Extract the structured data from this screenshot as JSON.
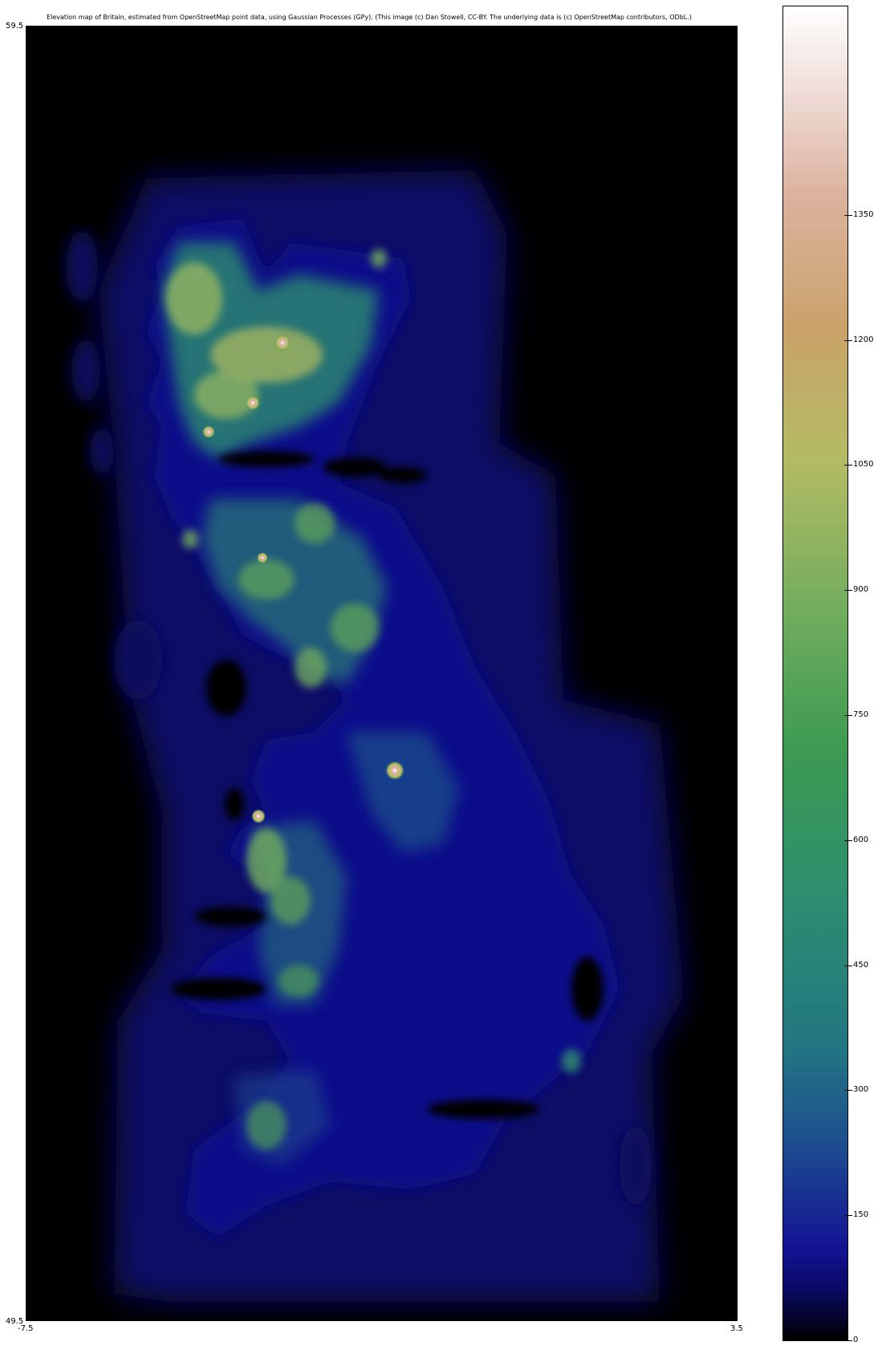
{
  "map": {
    "title": "Elevation map of Britain, estimated from OpenStreetMap point data, using Gaussian Processes (GPy). (This image (c) Dan Stowell, CC-BY. The underlying data is (c) OpenStreetMap contributors, ODbL.)",
    "axes": {
      "y_top": "59.5",
      "y_bottom": "49.5",
      "x_left": "-7.5",
      "x_right": "3.5"
    },
    "lat_range": [
      49.5,
      59.5
    ],
    "lon_range": [
      -7.5,
      3.5
    ],
    "colorbar": {
      "ticks": [
        "0",
        "150",
        "300",
        "450",
        "600",
        "750",
        "900",
        "1050",
        "1200",
        "1350"
      ],
      "range": [
        0,
        1350
      ],
      "colormap": "gist_earth",
      "colors": {
        "min": "#000000",
        "low": "#141493",
        "mid": "#3c9a52",
        "high": "#c9a36a",
        "max": "#ffffff"
      }
    },
    "colors": {
      "sea": "#000000",
      "lowland": "#0e0e7a",
      "upland": "#2f8f6e",
      "highland": "#b4bb63",
      "peak": "#f0dfda"
    }
  }
}
